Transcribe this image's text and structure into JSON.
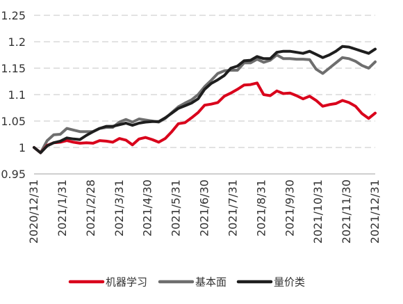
{
  "chart_data": {
    "type": "line",
    "title": "",
    "xlabel": "",
    "ylabel": "",
    "ylim": [
      0.95,
      1.25
    ],
    "y_ticks": [
      0.95,
      1.0,
      1.05,
      1.1,
      1.15,
      1.2,
      1.25
    ],
    "y_tick_labels": [
      "0.95",
      "1",
      "1.05",
      "1.1",
      "1.15",
      "1.2",
      "1.25"
    ],
    "x_tick_labels": [
      "2020/12/31",
      "2021/1/31",
      "2021/2/28",
      "2021/3/31",
      "2021/4/30",
      "2021/5/31",
      "2021/6/30",
      "2021/7/31",
      "2021/8/31",
      "2021/9/30",
      "2021/10/31",
      "2021/11/30",
      "2021/12/31"
    ],
    "grid": "horizontal dashed",
    "legend_position": "bottom",
    "series": [
      {
        "name": "机器学习",
        "color": "#D9001B",
        "values": [
          1.0,
          0.99,
          1.004,
          1.009,
          1.01,
          1.013,
          1.01,
          1.008,
          1.009,
          1.008,
          1.013,
          1.012,
          1.01,
          1.017,
          1.014,
          1.005,
          1.016,
          1.019,
          1.015,
          1.01,
          1.017,
          1.03,
          1.045,
          1.047,
          1.056,
          1.066,
          1.08,
          1.082,
          1.085,
          1.097,
          1.103,
          1.11,
          1.118,
          1.119,
          1.122,
          1.1,
          1.098,
          1.107,
          1.102,
          1.103,
          1.098,
          1.092,
          1.097,
          1.089,
          1.078,
          1.081,
          1.083,
          1.089,
          1.085,
          1.078,
          1.064,
          1.055,
          1.065
        ]
      },
      {
        "name": "基本面",
        "color": "#6E6E6E",
        "values": [
          1.0,
          0.99,
          1.013,
          1.024,
          1.025,
          1.036,
          1.033,
          1.03,
          1.03,
          1.03,
          1.036,
          1.038,
          1.038,
          1.048,
          1.053,
          1.048,
          1.054,
          1.052,
          1.05,
          1.048,
          1.055,
          1.066,
          1.077,
          1.084,
          1.09,
          1.1,
          1.115,
          1.127,
          1.14,
          1.145,
          1.146,
          1.146,
          1.16,
          1.16,
          1.167,
          1.161,
          1.165,
          1.175,
          1.168,
          1.168,
          1.167,
          1.167,
          1.166,
          1.148,
          1.14,
          1.15,
          1.16,
          1.17,
          1.168,
          1.163,
          1.155,
          1.15,
          1.162
        ]
      },
      {
        "name": "量价类",
        "color": "#1E1E1E",
        "values": [
          1.0,
          0.99,
          1.003,
          1.009,
          1.012,
          1.018,
          1.016,
          1.015,
          1.023,
          1.03,
          1.036,
          1.04,
          1.04,
          1.043,
          1.046,
          1.042,
          1.046,
          1.048,
          1.049,
          1.049,
          1.056,
          1.065,
          1.074,
          1.079,
          1.084,
          1.092,
          1.11,
          1.121,
          1.128,
          1.136,
          1.15,
          1.154,
          1.164,
          1.165,
          1.172,
          1.168,
          1.168,
          1.18,
          1.182,
          1.182,
          1.18,
          1.178,
          1.182,
          1.176,
          1.17,
          1.175,
          1.182,
          1.191,
          1.19,
          1.186,
          1.182,
          1.178,
          1.186
        ]
      }
    ]
  }
}
